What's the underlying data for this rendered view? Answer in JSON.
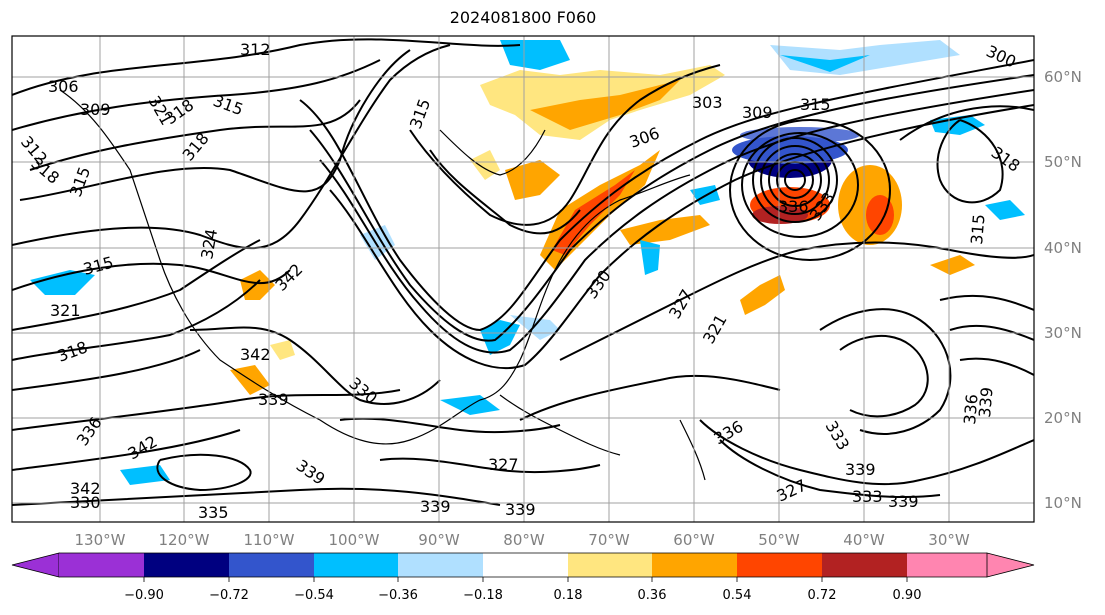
{
  "title": "2024081800 F060",
  "longitude_labels": [
    "130°W",
    "120°W",
    "110°W",
    "100°W",
    "90°W",
    "80°W",
    "70°W",
    "60°W",
    "50°W",
    "40°W",
    "30°W"
  ],
  "latitude_labels": [
    "60°N",
    "50°N",
    "40°N",
    "30°N",
    "20°N",
    "10°N"
  ],
  "colorbar": {
    "tick_labels": [
      "−0.90",
      "−0.72",
      "−0.54",
      "−0.36",
      "−0.18",
      "0.18",
      "0.36",
      "0.54",
      "0.72",
      "0.90"
    ],
    "colors": [
      "#9b30d6",
      "#000080",
      "#3355cc",
      "#00bfff",
      "#b0e0ff",
      "#ffffff",
      "#ffe680",
      "#ffa500",
      "#ff4500",
      "#b22222",
      "#ff85b0"
    ]
  },
  "contour_labels": [
    "312",
    "306",
    "309",
    "321",
    "318",
    "315",
    "318",
    "318",
    "315",
    "312",
    "315",
    "303",
    "309",
    "315",
    "300",
    "306",
    "318",
    "336",
    "333",
    "315",
    "324",
    "321",
    "315",
    "342",
    "330",
    "327",
    "321",
    "318",
    "342",
    "330",
    "339",
    "336",
    "342",
    "339",
    "339",
    "327",
    "339",
    "336",
    "333",
    "339",
    "339",
    "327",
    "336",
    "333",
    "342",
    "330",
    "335",
    "339",
    "339",
    "339",
    "339",
    "339"
  ],
  "colors": {
    "contour": "#000000",
    "grid": "#a0a0a0",
    "frame": "#000000"
  }
}
